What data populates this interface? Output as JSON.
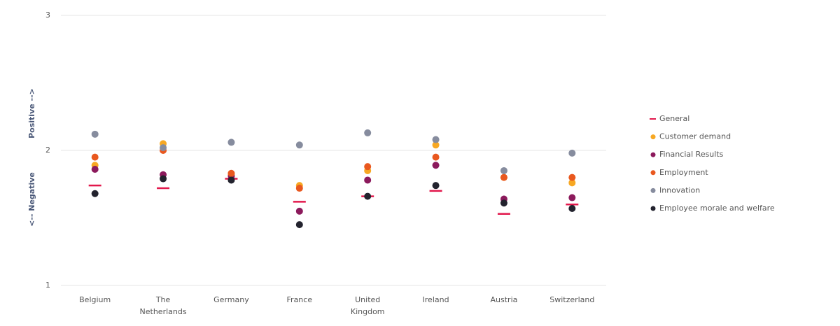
{
  "chart_data": {
    "type": "dot",
    "y_label_negative": "<-- Negative",
    "y_label_positive": "Positive -->",
    "categories": [
      "Belgium",
      "The Netherlands",
      "Germany",
      "France",
      "United Kingdom",
      "Ireland",
      "Austria",
      "Switzerland"
    ],
    "series": [
      {
        "name": "General",
        "color": "#e2184c",
        "marker": "dash",
        "values": [
          1.74,
          1.72,
          1.79,
          1.62,
          1.66,
          1.7,
          1.53,
          1.6
        ]
      },
      {
        "name": "Customer demand",
        "color": "#f7a823",
        "marker": "dot",
        "values": [
          1.89,
          2.05,
          1.82,
          1.74,
          1.85,
          2.04,
          1.8,
          1.76
        ]
      },
      {
        "name": "Financial Results",
        "color": "#8c1a5c",
        "marker": "dot",
        "values": [
          1.86,
          1.82,
          1.81,
          1.55,
          1.78,
          1.89,
          1.64,
          1.65
        ]
      },
      {
        "name": "Employment",
        "color": "#e9581f",
        "marker": "dot",
        "values": [
          1.95,
          2.0,
          1.83,
          1.72,
          1.88,
          1.95,
          1.8,
          1.8
        ]
      },
      {
        "name": "Innovation",
        "color": "#868c9e",
        "marker": "dot",
        "values": [
          2.12,
          2.02,
          2.06,
          2.04,
          2.13,
          2.08,
          1.85,
          1.98
        ]
      },
      {
        "name": "Employee morale and welfare",
        "color": "#23232e",
        "marker": "dot",
        "values": [
          1.68,
          1.79,
          1.78,
          1.45,
          1.66,
          1.74,
          1.61,
          1.57
        ]
      }
    ],
    "ylim": [
      1,
      3
    ],
    "yticks": [
      1,
      2,
      3
    ],
    "grid": true,
    "legend": "right"
  }
}
